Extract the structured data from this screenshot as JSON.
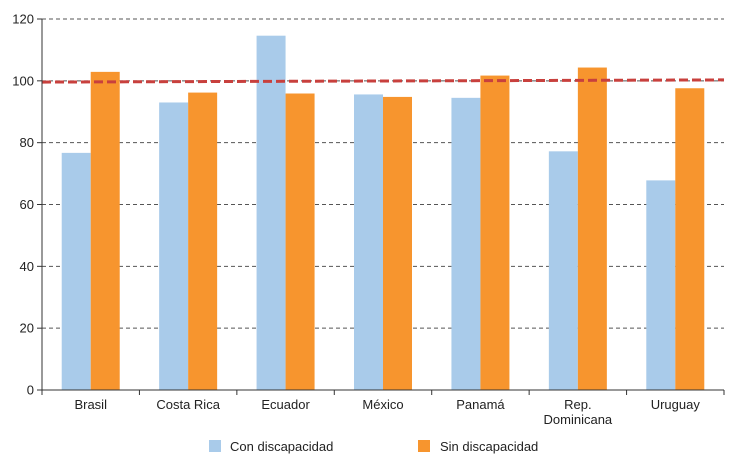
{
  "chart_data": {
    "type": "bar",
    "categories": [
      "Brasil",
      "Costa Rica",
      "Ecuador",
      "México",
      "Panamá",
      "Rep. Dominicana",
      "Uruguay"
    ],
    "category_lines": [
      [
        "Brasil"
      ],
      [
        "Costa Rica"
      ],
      [
        "Ecuador"
      ],
      [
        "México"
      ],
      [
        "Panamá"
      ],
      [
        "Rep.",
        "Dominicana"
      ],
      [
        "Uruguay"
      ]
    ],
    "series": [
      {
        "name": "Con discapacidad",
        "color": "#a9cbea",
        "values": [
          76.7,
          93.0,
          114.6,
          95.6,
          94.5,
          77.2,
          67.8
        ]
      },
      {
        "name": "Sin discapacidad",
        "color": "#f7952e",
        "values": [
          102.9,
          96.2,
          95.9,
          94.8,
          101.7,
          104.3,
          97.6
        ]
      }
    ],
    "reference_line": {
      "y_start": 99.6,
      "y_end": 100.3,
      "color": "#c8403d",
      "style": "dashed"
    },
    "ylim": [
      0,
      120
    ],
    "yticks": [
      0,
      20,
      40,
      60,
      80,
      100,
      120
    ],
    "grid": true,
    "grid_style": "dashed",
    "legend_position": "bottom",
    "title": "",
    "xlabel": "",
    "ylabel": ""
  }
}
